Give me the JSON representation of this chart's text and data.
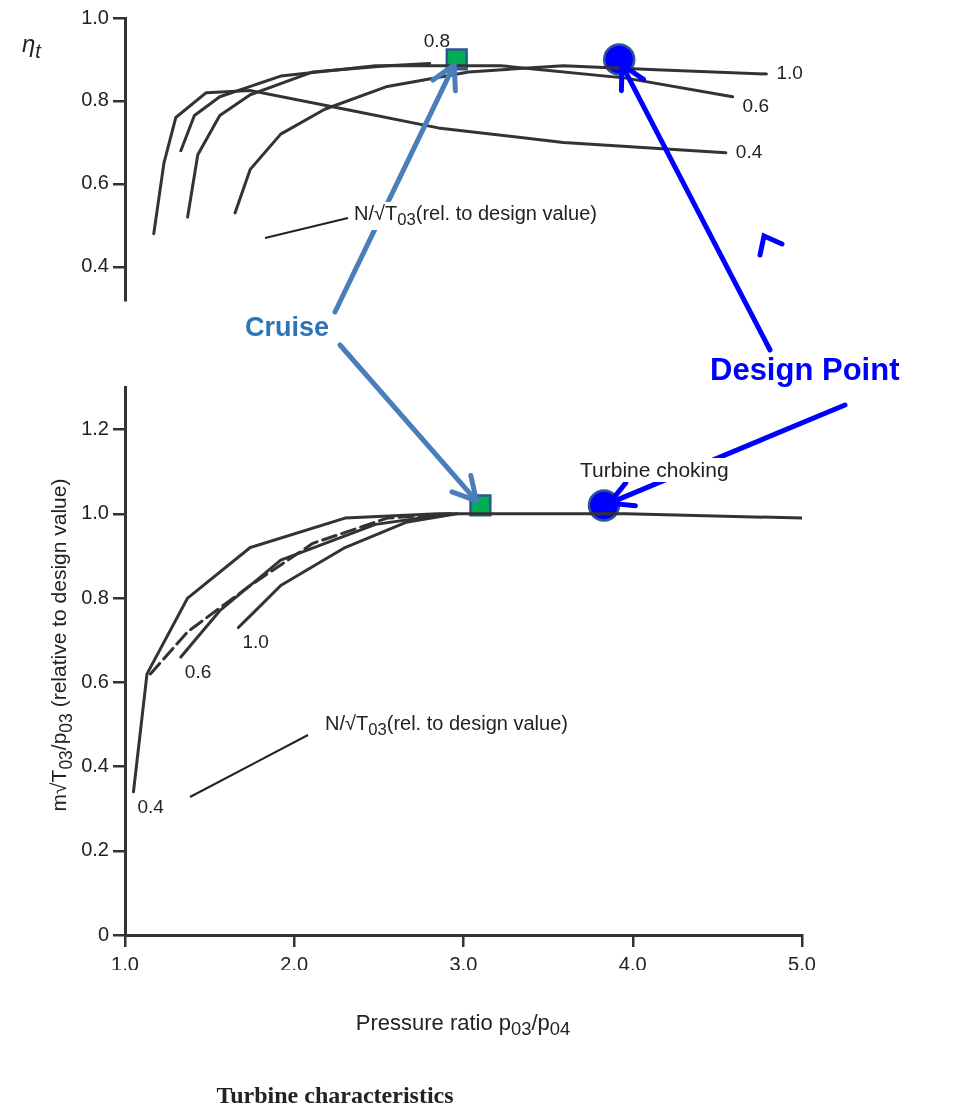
{
  "chart_data": [
    {
      "type": "line",
      "ylabel": "η$_{t}$",
      "xlim": [
        1.0,
        5.0
      ],
      "ylim": [
        0.32,
        1.0
      ],
      "yticks": [
        {
          "value": 0.4,
          "label": "0.4"
        },
        {
          "value": 0.6,
          "label": "0.6"
        },
        {
          "value": 0.8,
          "label": "0.8"
        },
        {
          "value": 1.0,
          "label": "1.0"
        }
      ],
      "tick_labels": "y",
      "grid": false,
      "legend": false,
      "annotations": [
        "N/√T$_{03}$(rel. to design value)",
        {
          "text": "Cruise",
          "x": 2.96,
          "y": 0.9
        },
        {
          "text": "Design Point",
          "x": 3.92,
          "y": 0.9
        }
      ],
      "series": [
        {
          "name": "0.4",
          "color": "#333333",
          "x": [
            1.17,
            1.23,
            1.3,
            1.48,
            1.74,
            2.3,
            2.85,
            3.59,
            4.55
          ],
          "values": [
            0.48,
            0.65,
            0.76,
            0.82,
            0.825,
            0.78,
            0.735,
            0.7,
            0.675
          ]
        },
        {
          "name": "0.6",
          "color": "#333333",
          "x": [
            1.33,
            1.41,
            1.56,
            1.92,
            2.48,
            3.22,
            3.96,
            4.59
          ],
          "values": [
            0.68,
            0.765,
            0.81,
            0.86,
            0.885,
            0.885,
            0.855,
            0.81
          ]
        },
        {
          "name": "0.8",
          "color": "#333333",
          "x": [
            1.37,
            1.43,
            1.56,
            1.74,
            2.11,
            2.55,
            2.8
          ],
          "values": [
            0.52,
            0.67,
            0.765,
            0.815,
            0.87,
            0.885,
            0.89
          ]
        },
        {
          "name": "1.0",
          "color": "#333333",
          "x": [
            1.65,
            1.74,
            1.92,
            2.18,
            2.55,
            3.03,
            3.59,
            4.14,
            4.79
          ],
          "values": [
            0.53,
            0.635,
            0.72,
            0.78,
            0.835,
            0.87,
            0.885,
            0.875,
            0.865
          ]
        },
        {
          "type": "scatter",
          "marker": "square",
          "color": "#00b050",
          "x": [
            2.96
          ],
          "values": [
            0.9
          ]
        },
        {
          "type": "scatter",
          "marker": "circle",
          "color": "#0000ff",
          "x": [
            3.92
          ],
          "values": [
            0.9
          ]
        }
      ]
    },
    {
      "type": "line",
      "title": "Turbine characteristics",
      "xlabel": "Pressure ratio p$_{03}$/p$_{04}$",
      "ylabel": "m√T$_{03}$/p$_{03}$ (relative to design value)",
      "xlim": [
        1.0,
        5.0
      ],
      "ylim": [
        0,
        1.3
      ],
      "xticks": [
        {
          "value": 1,
          "label": "1.0"
        },
        {
          "value": 2,
          "label": "2.0"
        },
        {
          "value": 3,
          "label": "3.0"
        },
        {
          "value": 4,
          "label": "4.0"
        },
        {
          "value": 5,
          "label": "5.0"
        }
      ],
      "yticks": [
        0,
        0.2,
        0.4,
        0.6,
        0.8,
        {
          "value": 1,
          "label": "1.0"
        },
        1.2
      ],
      "grid": false,
      "legend": false,
      "annotations": [
        "N/√T$_{03}$(rel. to design value)",
        "Turbine choking"
      ],
      "series": [
        {
          "name": "0.4",
          "color": "#333333",
          "x": [
            1.05,
            1.13,
            1.37,
            1.74,
            2.3,
            2.85,
            3.96,
            5.0
          ],
          "values": [
            0.34,
            0.62,
            0.8,
            0.92,
            0.99,
            1.0,
            1.0,
            0.99
          ]
        },
        {
          "name": "0.6",
          "color": "#333333",
          "x": [
            1.33,
            1.56,
            1.92,
            2.48,
            2.92
          ],
          "values": [
            0.66,
            0.77,
            0.89,
            0.975,
            1.0
          ]
        },
        {
          "line_style": "dashed",
          "color": "#333333",
          "x": [
            1.15,
            1.37,
            1.74,
            2.11,
            2.55,
            2.92
          ],
          "values": [
            0.62,
            0.72,
            0.83,
            0.93,
            0.99,
            1.0
          ]
        },
        {
          "name": "1.0",
          "color": "#333333",
          "x": [
            1.67,
            1.92,
            2.3,
            2.66,
            2.96
          ],
          "values": [
            0.73,
            0.83,
            0.92,
            0.98,
            1.0
          ]
        },
        {
          "type": "scatter",
          "marker": "square",
          "color": "#00b050",
          "x": [
            3.1
          ],
          "values": [
            1.02
          ]
        },
        {
          "type": "scatter",
          "marker": "circle",
          "color": "#0000ff",
          "x": [
            3.83
          ],
          "values": [
            1.02
          ]
        }
      ]
    }
  ]
}
